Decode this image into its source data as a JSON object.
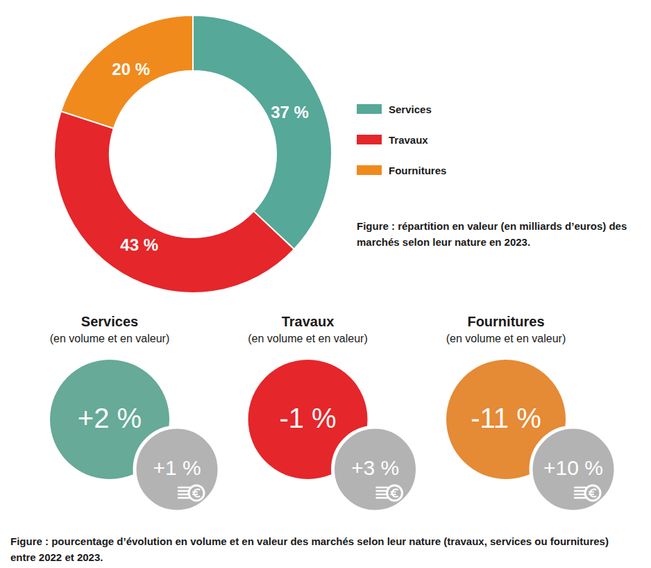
{
  "chart_data": [
    {
      "type": "pie",
      "title": "Figure : répartition en valeur (en milliards d’euros) des marchés selon leur nature en 2023.",
      "categories": [
        "Services",
        "Travaux",
        "Fournitures"
      ],
      "values": [
        37,
        43,
        20
      ],
      "value_labels": [
        "37 %",
        "43 %",
        "20 %"
      ],
      "colors": [
        "#56a899",
        "#e5262a",
        "#f08a1c"
      ],
      "data_labels": true,
      "legend": "right"
    },
    {
      "type": "kpi",
      "title": "Figure : pourcentage d’évolution en volume et en valeur des marchés selon leur nature (travaux, services ou fournitures) entre 2022 et 2023.",
      "categories": [
        "Services",
        "Travaux",
        "Fournitures"
      ],
      "category_notes": [
        "(en volume et en valeur)",
        "(en volume et en valeur)",
        "(en volume et en valeur)"
      ],
      "series": [
        {
          "values": [
            2,
            -1,
            -11
          ],
          "value_labels": [
            "+2 %",
            "-1 %",
            "-11 %"
          ],
          "colors": [
            "#66aa97",
            "#e5262a",
            "#e58a35"
          ]
        },
        {
          "values": [
            1,
            3,
            10
          ],
          "value_labels": [
            "+1 %",
            "+3 %",
            "+10 %"
          ],
          "color": "#b3b3b3"
        }
      ],
      "data_labels": true
    }
  ]
}
